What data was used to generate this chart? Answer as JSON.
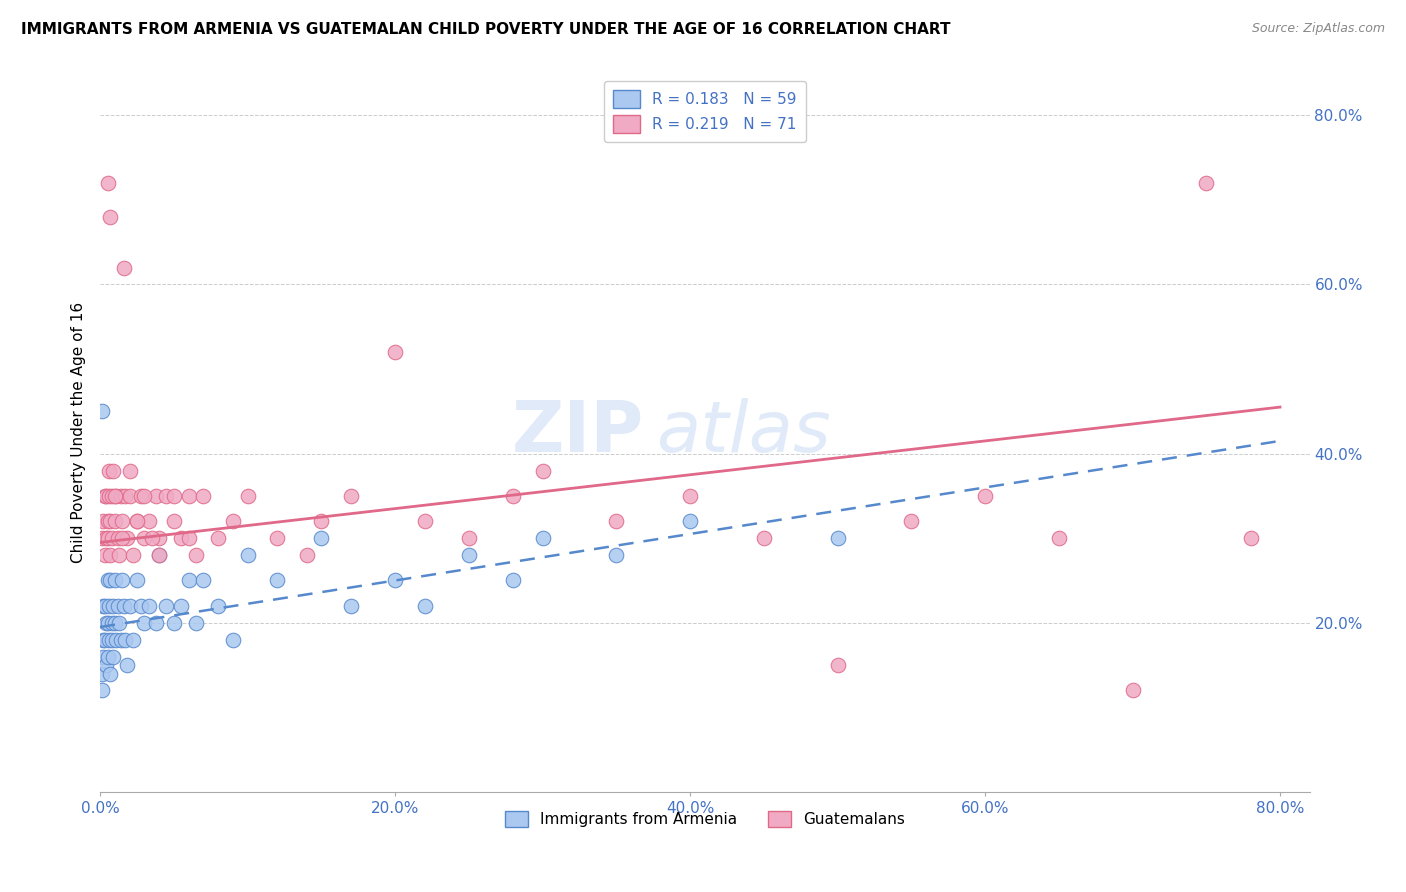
{
  "title": "IMMIGRANTS FROM ARMENIA VS GUATEMALAN CHILD POVERTY UNDER THE AGE OF 16 CORRELATION CHART",
  "source": "Source: ZipAtlas.com",
  "ylabel": "Child Poverty Under the Age of 16",
  "legend_r1": "R = 0.183",
  "legend_n1": "N = 59",
  "legend_r2": "R = 0.219",
  "legend_n2": "N = 71",
  "legend_label1": "Immigrants from Armenia",
  "legend_label2": "Guatemalans",
  "color_armenia": "#aac8f0",
  "color_guatemala": "#f0aac4",
  "color_line_armenia": "#5588cc",
  "color_line_guatemala": "#e06888",
  "xlim": [
    0.0,
    0.82
  ],
  "ylim": [
    0.0,
    0.85
  ],
  "xticks": [
    0.0,
    0.2,
    0.4,
    0.6,
    0.8
  ],
  "yticks": [
    0.2,
    0.4,
    0.6,
    0.8
  ],
  "armenia_x": [
    0.001,
    0.001,
    0.001,
    0.002,
    0.002,
    0.002,
    0.003,
    0.003,
    0.004,
    0.004,
    0.005,
    0.005,
    0.005,
    0.006,
    0.006,
    0.007,
    0.007,
    0.008,
    0.008,
    0.009,
    0.009,
    0.01,
    0.01,
    0.011,
    0.012,
    0.013,
    0.014,
    0.015,
    0.016,
    0.017,
    0.018,
    0.02,
    0.022,
    0.025,
    0.028,
    0.03,
    0.033,
    0.038,
    0.04,
    0.045,
    0.05,
    0.055,
    0.06,
    0.065,
    0.07,
    0.08,
    0.09,
    0.1,
    0.12,
    0.15,
    0.17,
    0.2,
    0.22,
    0.25,
    0.28,
    0.3,
    0.35,
    0.4,
    0.5
  ],
  "armenia_y": [
    0.45,
    0.14,
    0.12,
    0.18,
    0.22,
    0.16,
    0.22,
    0.18,
    0.2,
    0.15,
    0.2,
    0.25,
    0.16,
    0.22,
    0.18,
    0.25,
    0.14,
    0.2,
    0.18,
    0.22,
    0.16,
    0.2,
    0.25,
    0.18,
    0.22,
    0.2,
    0.18,
    0.25,
    0.22,
    0.18,
    0.15,
    0.22,
    0.18,
    0.25,
    0.22,
    0.2,
    0.22,
    0.2,
    0.28,
    0.22,
    0.2,
    0.22,
    0.25,
    0.2,
    0.25,
    0.22,
    0.18,
    0.28,
    0.25,
    0.3,
    0.22,
    0.25,
    0.22,
    0.28,
    0.25,
    0.3,
    0.28,
    0.32,
    0.3
  ],
  "guatemala_x": [
    0.001,
    0.002,
    0.003,
    0.003,
    0.004,
    0.004,
    0.005,
    0.005,
    0.006,
    0.006,
    0.007,
    0.007,
    0.008,
    0.008,
    0.009,
    0.01,
    0.011,
    0.012,
    0.013,
    0.014,
    0.015,
    0.016,
    0.017,
    0.018,
    0.02,
    0.022,
    0.025,
    0.028,
    0.03,
    0.033,
    0.038,
    0.04,
    0.045,
    0.05,
    0.055,
    0.06,
    0.065,
    0.07,
    0.08,
    0.09,
    0.1,
    0.12,
    0.14,
    0.15,
    0.17,
    0.2,
    0.22,
    0.25,
    0.28,
    0.3,
    0.35,
    0.4,
    0.45,
    0.5,
    0.55,
    0.6,
    0.65,
    0.7,
    0.75,
    0.78,
    0.005,
    0.007,
    0.01,
    0.015,
    0.02,
    0.025,
    0.03,
    0.035,
    0.04,
    0.05,
    0.06
  ],
  "guatemala_y": [
    0.3,
    0.32,
    0.28,
    0.35,
    0.3,
    0.35,
    0.32,
    0.3,
    0.35,
    0.38,
    0.32,
    0.28,
    0.35,
    0.3,
    0.38,
    0.32,
    0.35,
    0.3,
    0.28,
    0.35,
    0.32,
    0.62,
    0.35,
    0.3,
    0.35,
    0.28,
    0.32,
    0.35,
    0.3,
    0.32,
    0.35,
    0.3,
    0.35,
    0.32,
    0.3,
    0.35,
    0.28,
    0.35,
    0.3,
    0.32,
    0.35,
    0.3,
    0.28,
    0.32,
    0.35,
    0.52,
    0.32,
    0.3,
    0.35,
    0.38,
    0.32,
    0.35,
    0.3,
    0.15,
    0.32,
    0.35,
    0.3,
    0.12,
    0.72,
    0.3,
    0.72,
    0.68,
    0.35,
    0.3,
    0.38,
    0.32,
    0.35,
    0.3,
    0.28,
    0.35,
    0.3
  ],
  "line_armenia_x0": 0.0,
  "line_armenia_x1": 0.8,
  "line_armenia_y0": 0.195,
  "line_armenia_y1": 0.415,
  "line_guatemala_x0": 0.0,
  "line_guatemala_x1": 0.8,
  "line_guatemala_y0": 0.295,
  "line_guatemala_y1": 0.455
}
